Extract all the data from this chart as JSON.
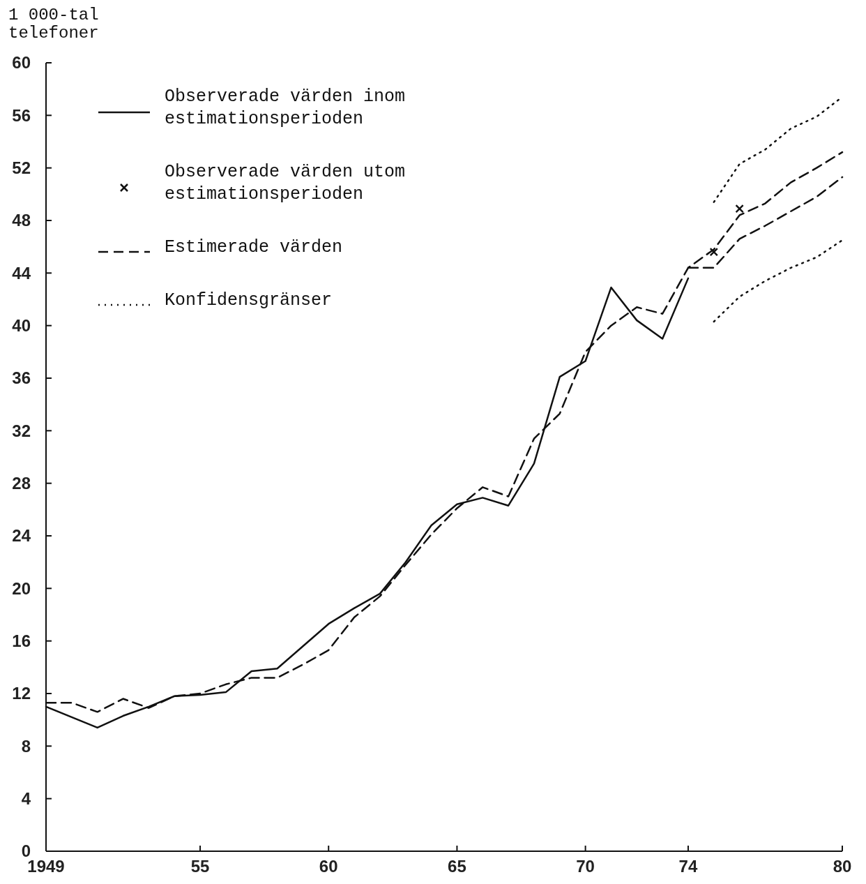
{
  "chart_data": {
    "type": "line",
    "ylabel": "1 000-tal telefoner",
    "xlim": [
      1949,
      1980
    ],
    "xticks": [
      1949,
      {
        "value": 1955,
        "label": "55"
      },
      {
        "value": 1960,
        "label": "60"
      },
      {
        "value": 1965,
        "label": "65"
      },
      {
        "value": 1970,
        "label": "70"
      },
      {
        "value": 1974,
        "label": "74"
      },
      {
        "value": 1980,
        "label": "80"
      }
    ],
    "ylim": [
      0,
      60
    ],
    "yticks": [
      0,
      4,
      8,
      12,
      16,
      20,
      24,
      28,
      32,
      36,
      40,
      44,
      48,
      52,
      56,
      60
    ],
    "grid": false,
    "legend": "top left",
    "series": [
      {
        "name": "Observerade värden inom estimationsperioden",
        "color": "#111111",
        "line_style": "solid",
        "x": [
          1949,
          1950,
          1951,
          1952,
          1953,
          1954,
          1955,
          1956,
          1957,
          1958,
          1959,
          1960,
          1961,
          1962,
          1963,
          1964,
          1965,
          1966,
          1967,
          1968,
          1969,
          1970,
          1971,
          1972,
          1973,
          1974
        ],
        "values": [
          11.0,
          10.2,
          9.4,
          10.3,
          11.0,
          11.8,
          11.9,
          12.1,
          13.7,
          13.9,
          15.6,
          17.3,
          18.5,
          19.6,
          22.0,
          24.8,
          26.4,
          26.9,
          26.3,
          29.5,
          36.1,
          37.3,
          42.9,
          40.4,
          39.0,
          43.6
        ]
      },
      {
        "name": "Observerade värden utom estimationsperioden",
        "type": "scatter",
        "marker": "cross",
        "color": "#111111",
        "x": [
          1975,
          1976
        ],
        "values": [
          45.6,
          48.9
        ]
      },
      {
        "name": "Estimerade värden",
        "color": "#111111",
        "line_style": "dashed",
        "x": [
          1949,
          1950,
          1951,
          1952,
          1953,
          1954,
          1955,
          1956,
          1957,
          1958,
          1959,
          1960,
          1961,
          1962,
          1963,
          1964,
          1965,
          1966,
          1967,
          1968,
          1969,
          1970,
          1971,
          1972,
          1973,
          1974,
          1975,
          1976,
          1977,
          1978,
          1979,
          1980
        ],
        "values": [
          11.3,
          11.3,
          10.6,
          11.6,
          10.9,
          11.8,
          12.0,
          12.7,
          13.2,
          13.2,
          14.2,
          15.3,
          17.8,
          19.4,
          21.8,
          24.1,
          26.1,
          27.7,
          27.0,
          31.4,
          33.3,
          38.0,
          40.0,
          41.4,
          40.9,
          44.4,
          45.8,
          48.4,
          49.3,
          50.9,
          52.0,
          53.2
        ]
      },
      {
        "color": "#111111",
        "line_style": "dashed",
        "x": [
          1974,
          1975,
          1976,
          1977,
          1978,
          1979,
          1980
        ],
        "values": [
          44.4,
          44.4,
          46.6,
          47.6,
          48.7,
          49.8,
          51.3
        ]
      },
      {
        "name": "Konfidensgränser",
        "color": "#111111",
        "line_style": "dotted",
        "x": [
          1975,
          1976,
          1977,
          1978,
          1979,
          1980
        ],
        "values": [
          49.4,
          52.3,
          53.4,
          55.0,
          55.9,
          57.4
        ]
      },
      {
        "color": "#111111",
        "line_style": "dotted",
        "x": [
          1975,
          1976,
          1977,
          1978,
          1979,
          1980
        ],
        "values": [
          40.3,
          42.2,
          43.4,
          44.4,
          45.2,
          46.5
        ]
      }
    ]
  }
}
